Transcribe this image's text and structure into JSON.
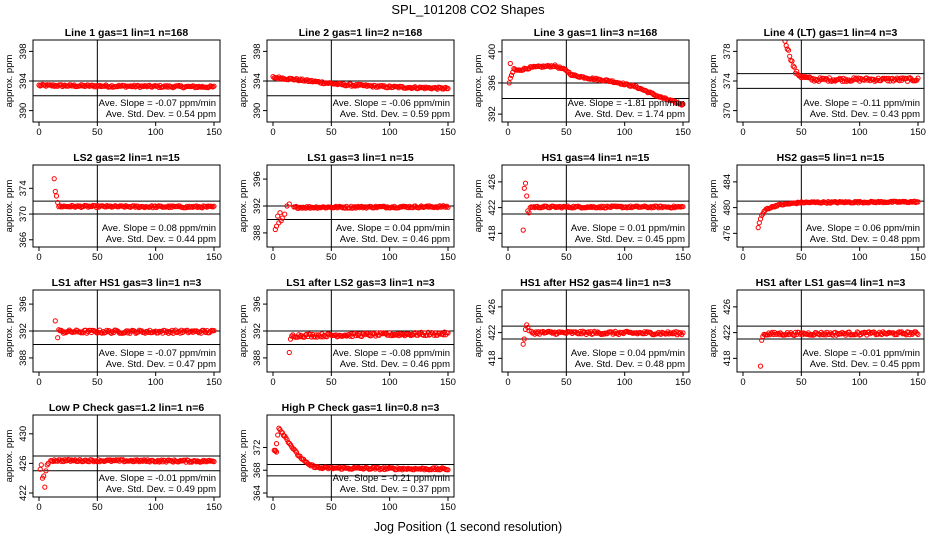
{
  "figure": {
    "title": "SPL_101208  CO2 Shapes",
    "xlabel": "Jog Position (1 second resolution)",
    "ylabel": "approx. ppm",
    "slope_prefix": "Ave. Slope = ",
    "slope_unit": " ppm/min",
    "sd_prefix": "Ave. Std. Dev. = ",
    "sd_unit": " ppm",
    "x_ticks": [
      0,
      50,
      100,
      150
    ],
    "x_range": [
      0,
      150
    ],
    "point_color": "#ff0000"
  },
  "chart_data": [
    {
      "type": "scatter",
      "title": "Line 1 gas=1 lin=1 n=168",
      "ylim": [
        389,
        399
      ],
      "yticks": [
        390,
        394,
        398
      ],
      "hlines": [
        394,
        392
      ],
      "x": [
        0,
        150
      ],
      "y": [
        393.4,
        393.2
      ],
      "n_points": 150,
      "noise": 0.15,
      "slope": "-0.07",
      "sd": "0.54"
    },
    {
      "type": "scatter",
      "title": "Line 2 gas=1 lin=2 n=168",
      "ylim": [
        389,
        399
      ],
      "yticks": [
        390,
        394,
        398
      ],
      "hlines": [
        394,
        392
      ],
      "x": [
        0,
        20,
        60,
        100,
        150
      ],
      "y": [
        394.5,
        394.2,
        393.5,
        393.2,
        393.0
      ],
      "n_points": 150,
      "noise": 0.15,
      "slope": "-0.06",
      "sd": "0.59"
    },
    {
      "type": "scatter",
      "title": "Line 3 gas=1 lin=3 n=168",
      "ylim": [
        391.5,
        401
      ],
      "yticks": [
        392,
        396,
        400
      ],
      "hlines": [
        396,
        394
      ],
      "x": [
        2,
        5,
        8,
        20,
        40,
        50,
        55,
        70,
        90,
        110,
        130,
        150
      ],
      "y": [
        396.5,
        397.8,
        397.6,
        398.0,
        398.2,
        397.6,
        397.0,
        396.6,
        396.2,
        395.5,
        394.2,
        393.2
      ],
      "n_points": 148,
      "noise": 0.12,
      "extra": [
        [
          1,
          396.0
        ],
        [
          2,
          398.5
        ],
        [
          3,
          397.0
        ]
      ],
      "slope": "-1.81",
      "sd": "1.74"
    },
    {
      "type": "scatter",
      "title": "Line 4 (LT) gas=1 lin=4 n=3",
      "ylim": [
        369,
        379
      ],
      "yticks": [
        370,
        374,
        378
      ],
      "hlines": [
        375,
        373
      ],
      "x": [
        36,
        40,
        45,
        50,
        60,
        150
      ],
      "y": [
        379.5,
        377.5,
        375.2,
        374.6,
        374.2,
        374.2
      ],
      "n_points": 115,
      "noise": 0.25,
      "slope": "-0.11",
      "sd": "0.43"
    },
    {
      "type": "scatter",
      "title": "LS2 gas=2 lin=1 n=15",
      "ylim": [
        365.5,
        377
      ],
      "yticks": [
        366,
        370,
        374
      ],
      "hlines": [
        372,
        370
      ],
      "x": [
        17,
        150
      ],
      "y": [
        371.2,
        371.1
      ],
      "n_points": 133,
      "noise": 0.15,
      "extra": [
        [
          13,
          375.5
        ],
        [
          14,
          373.5
        ],
        [
          15,
          372.8
        ],
        [
          16,
          371.8
        ]
      ],
      "slope": "0.08",
      "sd": "0.44"
    },
    {
      "type": "scatter",
      "title": "LS1 gas=3 lin=1 n=15",
      "ylim": [
        386.5,
        397.5
      ],
      "yticks": [
        388,
        392,
        396
      ],
      "hlines": [
        392,
        390
      ],
      "x": [
        18,
        150
      ],
      "y": [
        391.8,
        391.9
      ],
      "n_points": 133,
      "noise": 0.15,
      "extra": [
        [
          2,
          388.5
        ],
        [
          3,
          389.0
        ],
        [
          4,
          390.5
        ],
        [
          5,
          389.5
        ],
        [
          6,
          391.0
        ],
        [
          7,
          389.8
        ],
        [
          8,
          390.2
        ],
        [
          10,
          390.8
        ],
        [
          12,
          392.0
        ],
        [
          14,
          392.3
        ]
      ],
      "slope": "0.04",
      "sd": "0.46"
    },
    {
      "type": "scatter",
      "title": "HS1 gas=4 lin=1 n=15",
      "ylim": [
        416.5,
        428
      ],
      "yticks": [
        418,
        422,
        426
      ],
      "hlines": [
        423,
        421
      ],
      "x": [
        20,
        150
      ],
      "y": [
        422.1,
        422.1
      ],
      "n_points": 131,
      "noise": 0.15,
      "extra": [
        [
          13,
          418.5
        ],
        [
          14,
          425.0
        ],
        [
          15,
          425.8
        ],
        [
          16,
          423.8
        ],
        [
          17,
          421.5
        ],
        [
          18,
          421.2
        ],
        [
          19,
          422.0
        ]
      ],
      "slope": "0.01",
      "sd": "0.45"
    },
    {
      "type": "scatter",
      "title": "HS2 gas=5 lin=1 n=15",
      "ylim": [
        474.5,
        486
      ],
      "yticks": [
        476,
        480,
        484
      ],
      "hlines": [
        481,
        479
      ],
      "x": [
        13,
        16,
        20,
        30,
        50,
        150
      ],
      "y": [
        477.0,
        478.8,
        479.8,
        480.4,
        480.8,
        480.9
      ],
      "n_points": 138,
      "noise": 0.12,
      "slope": "0.06",
      "sd": "0.48"
    },
    {
      "type": "scatter",
      "title": "LS1 after HS1 gas=3 lin=1 n=3",
      "ylim": [
        386.5,
        397.5
      ],
      "yticks": [
        388,
        392,
        396
      ],
      "hlines": [
        392,
        390
      ],
      "x": [
        18,
        150
      ],
      "y": [
        391.9,
        391.9
      ],
      "n_points": 133,
      "noise": 0.25,
      "extra": [
        [
          14,
          393.5
        ],
        [
          16,
          391.0
        ],
        [
          17,
          392.2
        ]
      ],
      "slope": "-0.07",
      "sd": "0.47"
    },
    {
      "type": "scatter",
      "title": "LS1 after LS2 gas=3 lin=1 n=3",
      "ylim": [
        386.5,
        397.5
      ],
      "yticks": [
        388,
        392,
        396
      ],
      "hlines": [
        392,
        390
      ],
      "x": [
        16,
        150
      ],
      "y": [
        391.3,
        391.6
      ],
      "n_points": 135,
      "noise": 0.25,
      "extra": [
        [
          14,
          388.8
        ],
        [
          15,
          390.8
        ]
      ],
      "slope": "-0.08",
      "sd": "0.46"
    },
    {
      "type": "scatter",
      "title": "HS1 after HS2 gas=4 lin=1 n=3",
      "ylim": [
        416.5,
        428
      ],
      "yticks": [
        418,
        422,
        426
      ],
      "hlines": [
        423,
        421
      ],
      "x": [
        20,
        150
      ],
      "y": [
        422.0,
        421.9
      ],
      "n_points": 131,
      "noise": 0.25,
      "extra": [
        [
          13,
          420.2
        ],
        [
          14,
          421.0
        ],
        [
          15,
          422.5
        ],
        [
          16,
          423.2
        ],
        [
          17,
          422.8
        ],
        [
          18,
          422.3
        ]
      ],
      "slope": "0.04",
      "sd": "0.48"
    },
    {
      "type": "scatter",
      "title": "HS1 after LS1 gas=4 lin=1 n=3",
      "ylim": [
        416.5,
        428
      ],
      "yticks": [
        418,
        422,
        426
      ],
      "hlines": [
        423,
        421
      ],
      "x": [
        18,
        150
      ],
      "y": [
        421.8,
        421.9
      ],
      "n_points": 133,
      "noise": 0.25,
      "extra": [
        [
          15,
          416.8
        ],
        [
          16,
          420.8
        ],
        [
          17,
          421.4
        ]
      ],
      "slope": "-0.01",
      "sd": "0.45"
    },
    {
      "type": "scatter",
      "title": "Low P Check gas=1.2 lin=1 n=6",
      "ylim": [
        422,
        432
      ],
      "yticks": [
        422,
        426,
        430
      ],
      "hlines": [
        427,
        425
      ],
      "x": [
        10,
        150
      ],
      "y": [
        426.4,
        426.3
      ],
      "n_points": 141,
      "noise": 0.15,
      "extra": [
        [
          1,
          425.2
        ],
        [
          2,
          425.8
        ],
        [
          3,
          424.0
        ],
        [
          4,
          424.3
        ],
        [
          5,
          422.8
        ],
        [
          6,
          425.0
        ],
        [
          7,
          425.8
        ],
        [
          8,
          426.0
        ]
      ],
      "slope": "-0.01",
      "sd": "0.49"
    },
    {
      "type": "scatter",
      "title": "High P Check gas=1 lin=0.8 n=3",
      "ylim": [
        364,
        377
      ],
      "yticks": [
        364,
        368,
        372
      ],
      "hlines": [
        369,
        367
      ],
      "x": [
        2,
        5,
        10,
        15,
        20,
        25,
        30,
        40,
        150
      ],
      "y": [
        371.5,
        375.5,
        374.0,
        372.5,
        371.0,
        370.0,
        369.0,
        368.4,
        368.2
      ],
      "n_points": 148,
      "noise": 0.2,
      "extra": [
        [
          1,
          371.5
        ],
        [
          2,
          371.5
        ],
        [
          3,
          371.2
        ]
      ],
      "slope": "-0.21",
      "sd": "0.37"
    }
  ]
}
